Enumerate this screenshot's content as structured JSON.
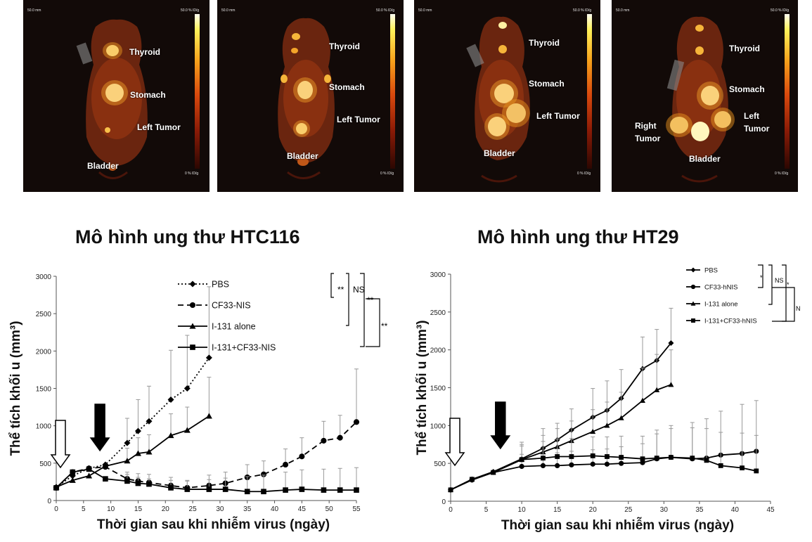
{
  "scans": [
    {
      "organs": [
        "Thyroid",
        "Stomach",
        "Left Tumor",
        "Bladder"
      ],
      "ruler": "50.0 mm",
      "scale_top": "50.0 % ID/g",
      "scale_bottom": "0 % ID/g"
    },
    {
      "organs": [
        "Thyroid",
        "Stomach",
        "Left Tumor",
        "Bladder"
      ],
      "ruler": "50.0 mm",
      "scale_top": "50.0 % ID/g",
      "scale_bottom": "0 % ID/g"
    },
    {
      "organs": [
        "Thyroid",
        "Stomach",
        "Left Tumor",
        "Bladder"
      ],
      "ruler": "50.0 mm",
      "scale_top": "50.0 % ID/g",
      "scale_bottom": "0 % ID/g"
    },
    {
      "organs": [
        "Thyroid",
        "Stomach",
        "Left Tumor",
        "Right Tumor",
        "Bladder"
      ],
      "ruler": "50.0 mm",
      "scale_top": "50.0 % ID/g",
      "scale_bottom": "0 % ID/g"
    }
  ],
  "chart_data": [
    {
      "type": "line",
      "title": "Mô hình ung thư HTC116",
      "xlabel": "Thời gian sau khi nhiễm virus (ngày)",
      "ylabel": "Thể tích khối u (mm³)",
      "xlim": [
        0,
        55
      ],
      "ylim": [
        0,
        3000
      ],
      "xticks": [
        0,
        5,
        10,
        15,
        20,
        25,
        30,
        35,
        40,
        45,
        50,
        55
      ],
      "yticks": [
        0,
        500,
        1000,
        1500,
        2000,
        2500,
        3000
      ],
      "legend_position": "top-right",
      "significance": [
        "**",
        "NS",
        "**",
        "**"
      ],
      "series": [
        {
          "name": "PBS",
          "marker": "diamond",
          "dash": "dotted",
          "x": [
            0,
            3,
            6,
            9,
            13,
            15,
            17,
            21,
            24,
            28
          ],
          "y": [
            180,
            330,
            430,
            480,
            770,
            930,
            1060,
            1350,
            1500,
            1910
          ],
          "err": [
            0,
            0,
            0,
            0,
            330,
            420,
            470,
            660,
            710,
            950
          ]
        },
        {
          "name": "CF33-NIS",
          "marker": "circle",
          "dash": "dashed",
          "x": [
            0,
            3,
            6,
            9,
            13,
            15,
            17,
            21,
            24,
            28,
            31,
            35,
            38,
            42,
            45,
            49,
            52,
            55
          ],
          "y": [
            170,
            380,
            430,
            450,
            290,
            260,
            240,
            200,
            170,
            200,
            230,
            310,
            350,
            480,
            590,
            800,
            840,
            1050
          ],
          "err": [
            0,
            0,
            0,
            0,
            90,
            100,
            110,
            110,
            100,
            140,
            150,
            170,
            180,
            210,
            250,
            260,
            300,
            710
          ]
        },
        {
          "name": "I-131 alone",
          "marker": "triangle",
          "dash": "solid",
          "x": [
            0,
            3,
            6,
            9,
            13,
            15,
            17,
            21,
            24,
            28
          ],
          "y": [
            180,
            270,
            330,
            460,
            530,
            630,
            650,
            870,
            940,
            1130
          ],
          "err": [
            0,
            0,
            0,
            0,
            170,
            210,
            230,
            290,
            310,
            520
          ]
        },
        {
          "name": "I-131+CF33-NIS",
          "marker": "square",
          "dash": "solid",
          "x": [
            0,
            3,
            6,
            9,
            13,
            15,
            17,
            21,
            24,
            28,
            31,
            35,
            38,
            42,
            45,
            49,
            52,
            55
          ],
          "y": [
            170,
            380,
            420,
            290,
            260,
            230,
            220,
            170,
            150,
            150,
            150,
            120,
            120,
            140,
            150,
            140,
            140,
            140
          ],
          "err": [
            0,
            0,
            0,
            0,
            90,
            80,
            70,
            100,
            110,
            130,
            150,
            200,
            220,
            240,
            260,
            280,
            290,
            300
          ]
        }
      ],
      "arrows": [
        {
          "style": "hollow",
          "x": 0
        },
        {
          "style": "filled",
          "x": 8
        }
      ]
    },
    {
      "type": "line",
      "title": "Mô hình ung thư HT29",
      "xlabel": "Thời gian sau khi nhiễm virus (ngày)",
      "ylabel": "Thể tích khối u (mm³)",
      "xlim": [
        0,
        45
      ],
      "ylim": [
        0,
        3000
      ],
      "xticks": [
        0,
        5,
        10,
        15,
        20,
        25,
        30,
        35,
        40,
        45
      ],
      "yticks": [
        0,
        500,
        1000,
        1500,
        2000,
        2500,
        3000
      ],
      "legend_position": "top-right",
      "significance": [
        "*",
        "NS",
        "*",
        "NS"
      ],
      "series": [
        {
          "name": "PBS",
          "marker": "diamond",
          "dash": "solid",
          "x": [
            0,
            3,
            6,
            10,
            13,
            15,
            17,
            20,
            22,
            24,
            27,
            29,
            31
          ],
          "y": [
            150,
            290,
            390,
            560,
            700,
            810,
            940,
            1110,
            1200,
            1360,
            1750,
            1860,
            2090
          ],
          "err": [
            0,
            0,
            0,
            220,
            260,
            220,
            280,
            380,
            390,
            380,
            420,
            410,
            460
          ]
        },
        {
          "name": "CF33-hNIS",
          "marker": "circle",
          "dash": "solid",
          "x": [
            0,
            3,
            6,
            10,
            13,
            15,
            17,
            20,
            22,
            24,
            27,
            29,
            31,
            34,
            36,
            38,
            41,
            43
          ],
          "y": [
            150,
            280,
            380,
            460,
            470,
            470,
            480,
            490,
            490,
            500,
            510,
            560,
            580,
            560,
            570,
            610,
            630,
            660
          ],
          "err": [
            0,
            0,
            0,
            160,
            170,
            170,
            180,
            190,
            200,
            220,
            250,
            380,
            420,
            480,
            520,
            580,
            650,
            670
          ]
        },
        {
          "name": "I-131 alone",
          "marker": "triangle",
          "dash": "solid",
          "x": [
            0,
            3,
            6,
            10,
            13,
            15,
            17,
            20,
            22,
            24,
            27,
            29,
            31
          ],
          "y": [
            150,
            290,
            380,
            550,
            650,
            720,
            800,
            920,
            1000,
            1100,
            1330,
            1470,
            1540
          ],
          "err": [
            0,
            0,
            0,
            180,
            220,
            240,
            260,
            290,
            310,
            340,
            430,
            470,
            460
          ]
        },
        {
          "name": "I-131+CF33-hNIS",
          "marker": "square",
          "dash": "solid",
          "x": [
            0,
            3,
            6,
            10,
            13,
            15,
            17,
            20,
            22,
            24,
            27,
            29,
            31,
            34,
            36,
            38,
            41,
            43
          ],
          "y": [
            150,
            290,
            380,
            550,
            570,
            590,
            590,
            600,
            590,
            580,
            560,
            570,
            580,
            570,
            540,
            470,
            440,
            400
          ],
          "err": [
            0,
            0,
            0,
            200,
            220,
            230,
            240,
            250,
            260,
            280,
            300,
            320,
            380,
            400,
            420,
            440,
            460,
            470
          ]
        }
      ],
      "arrows": [
        {
          "style": "hollow",
          "x": 0
        },
        {
          "style": "filled",
          "x": 7
        }
      ]
    }
  ]
}
